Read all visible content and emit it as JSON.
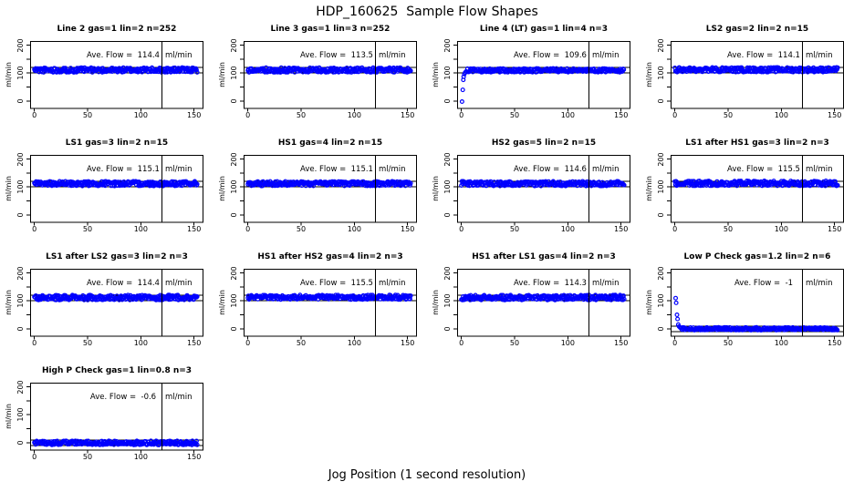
{
  "header": {
    "title": "HDP_160625  Sample Flow Shapes"
  },
  "footer": {
    "xlabel": "Jog Position (1 second resolution)"
  },
  "chart_data": {
    "type": "scatter",
    "layout": {
      "rows": 4,
      "cols": 4
    },
    "point_color": "#0000ff",
    "axis_color": "#000000",
    "marker": "open-circle",
    "ylabel": "ml/min",
    "flow_label_prefix": "Ave. Flow =",
    "unit": "ml/min",
    "xlim": [
      -4,
      158
    ],
    "ylim": [
      -25,
      215
    ],
    "x_ticks": [
      0,
      50,
      100,
      150
    ],
    "y_ticks_all": [
      0,
      50,
      100,
      150,
      200
    ],
    "y_ticks_labeled": [
      0,
      100,
      200
    ],
    "vline_x": 120,
    "x_range_points": [
      0,
      153
    ],
    "annotation_y": 160,
    "panels": [
      {
        "title": "Line 2 gas=1 lin=2 n=252",
        "ave_flow": "114.4",
        "pattern": "flat",
        "level": 111,
        "jitter": 8.5,
        "hlines": [
          100,
          120
        ],
        "lead_points": [],
        "flat_from": 0
      },
      {
        "title": "Line 3 gas=1 lin=3 n=252",
        "ave_flow": "113.5",
        "pattern": "flat",
        "level": 111,
        "jitter": 8.5,
        "hlines": [
          100,
          120
        ],
        "lead_points": [],
        "flat_from": 0
      },
      {
        "title": "Line 4 (LT) gas=1 lin=4 n=3",
        "ave_flow": "109.6",
        "pattern": "rise",
        "level": 110,
        "jitter": 7,
        "hlines": [
          100,
          120
        ],
        "lead_points": [
          [
            0.6,
            -2
          ],
          [
            1.3,
            40
          ],
          [
            1.8,
            76
          ],
          [
            2.2,
            87
          ],
          [
            2.8,
            96
          ],
          [
            3.5,
            102
          ],
          [
            4.5,
            106
          ]
        ],
        "flat_from": 5.2
      },
      {
        "title": "LS2 gas=2 lin=2 n=15",
        "ave_flow": "114.1",
        "pattern": "flat",
        "level": 112,
        "jitter": 8.5,
        "hlines": [
          100,
          120
        ],
        "lead_points": [],
        "flat_from": 0
      },
      {
        "title": "LS1 gas=3 lin=2 n=15",
        "ave_flow": "115.1",
        "pattern": "flat",
        "level": 112,
        "jitter": 8.5,
        "hlines": [
          100,
          120
        ],
        "lead_points": [],
        "flat_from": 0
      },
      {
        "title": "HS1 gas=4 lin=2 n=15",
        "ave_flow": "115.1",
        "pattern": "flat",
        "level": 112,
        "jitter": 8.5,
        "hlines": [
          100,
          120
        ],
        "lead_points": [],
        "flat_from": 0
      },
      {
        "title": "HS2 gas=5 lin=2 n=15",
        "ave_flow": "114.6",
        "pattern": "flat",
        "level": 112,
        "jitter": 8.5,
        "hlines": [
          100,
          120
        ],
        "lead_points": [],
        "flat_from": 0
      },
      {
        "title": "LS1 after HS1 gas=3 lin=2 n=3",
        "ave_flow": "115.5",
        "pattern": "flat",
        "level": 113,
        "jitter": 9,
        "hlines": [
          100,
          120
        ],
        "lead_points": [],
        "flat_from": 0
      },
      {
        "title": "LS1 after LS2 gas=3 lin=2 n=3",
        "ave_flow": "114.4",
        "pattern": "flat",
        "level": 112,
        "jitter": 9,
        "hlines": [
          100,
          120
        ],
        "lead_points": [],
        "flat_from": 0
      },
      {
        "title": "HS1 after HS2 gas=4 lin=2 n=3",
        "ave_flow": "115.5",
        "pattern": "flat",
        "level": 113,
        "jitter": 8.5,
        "hlines": [
          100,
          120
        ],
        "lead_points": [],
        "flat_from": 0
      },
      {
        "title": "HS1 after LS1 gas=4 lin=2 n=3",
        "ave_flow": "114.3",
        "pattern": "flat",
        "level": 112,
        "jitter": 9,
        "hlines": [
          100,
          120
        ],
        "lead_points": [],
        "flat_from": 0
      },
      {
        "title": "Low P Check gas=1.2 lin=2 n=6",
        "ave_flow": "-1",
        "pattern": "decay",
        "level": 0,
        "jitter": 5,
        "hlines": [
          -10,
          10
        ],
        "lead_points": [
          [
            0.7,
            110
          ],
          [
            1.2,
            93
          ],
          [
            2,
            50
          ],
          [
            2.5,
            35
          ],
          [
            3.2,
            15
          ],
          [
            4,
            8
          ],
          [
            5,
            4
          ]
        ],
        "flat_from": 5.8
      },
      {
        "title": "High P Check gas=1 lin=0.8 n=3",
        "ave_flow": "-0.6",
        "pattern": "flat",
        "level": -1,
        "jitter": 7.5,
        "hlines": [
          -10,
          10
        ],
        "lead_points": [],
        "flat_from": 0
      }
    ]
  }
}
